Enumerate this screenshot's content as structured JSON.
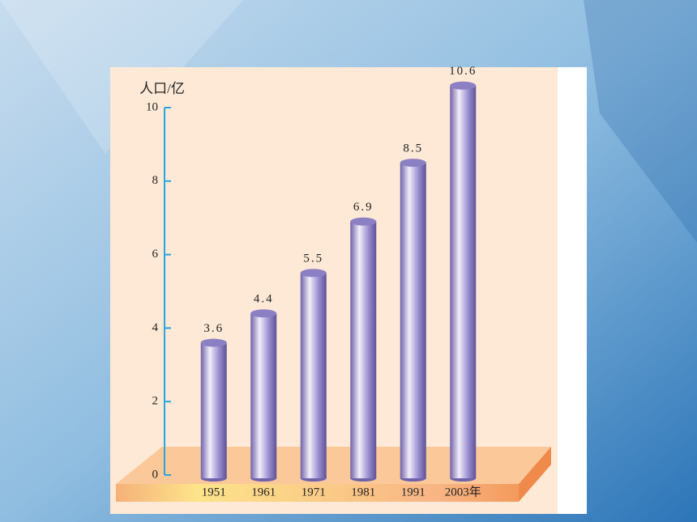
{
  "chart_data": {
    "type": "bar",
    "y_label": "人口/亿",
    "categories": [
      "1951",
      "1961",
      "1971",
      "1981",
      "1991",
      "2003年"
    ],
    "values": [
      3.6,
      4.4,
      5.5,
      6.9,
      8.5,
      10.6
    ],
    "color": "#8c80c4",
    "ylim": [
      0,
      10
    ],
    "yticks": [
      0,
      2,
      4,
      6,
      8,
      10
    ],
    "grid": false
  }
}
